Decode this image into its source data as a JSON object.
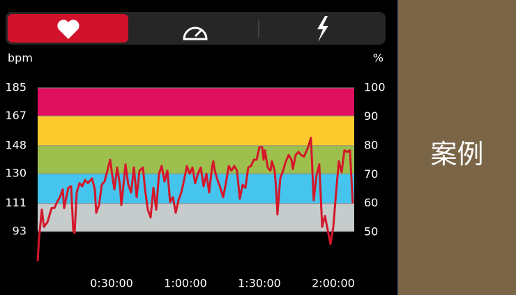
{
  "side_label": "案例",
  "chart_data": {
    "type": "line",
    "ylabel": "bpm",
    "y2label": "%",
    "color": "#d4172a",
    "x": [
      0,
      34,
      102,
      153,
      238,
      340,
      408,
      475,
      543,
      611,
      645,
      713,
      747,
      815,
      866,
      900,
      951,
      1019,
      1087,
      1155,
      1222,
      1324,
      1392,
      1426,
      1494,
      1562,
      1630,
      1698,
      1766,
      1817,
      1868,
      1936,
      2004,
      2038,
      2072,
      2139,
      2207,
      2275,
      2343,
      2411,
      2479,
      2564,
      2615,
      2683,
      2751,
      2819,
      2887,
      2955,
      3022,
      3090,
      3158,
      3226,
      3294,
      3362,
      3430,
      3498,
      3566,
      3634,
      3702,
      3770,
      3837,
      3905,
      3973,
      4041,
      4109,
      4177,
      4245,
      4279,
      4313,
      4381,
      4449,
      4517,
      4585,
      4653,
      4720,
      4788,
      4856,
      4924,
      4992,
      5060,
      5128,
      5196,
      5264,
      5332,
      5400,
      5468,
      5502,
      5535,
      5603,
      5671,
      5705,
      5773,
      5807,
      5841,
      5909,
      5977,
      6045,
      6113,
      6181,
      6215,
      6283,
      6350,
      6418,
      6486,
      6554,
      6588,
      6622,
      6656,
      6724,
      6792,
      6860,
      6928,
      6996,
      7064,
      7132,
      7200,
      7268,
      7335,
      7403,
      7471,
      7539,
      7607,
      7675
    ],
    "values": [
      74,
      89,
      107,
      96,
      99,
      108,
      108,
      112,
      115,
      120,
      108,
      117,
      121,
      122,
      94,
      92,
      118,
      124,
      122,
      126,
      124,
      127,
      120,
      105,
      110,
      123,
      125,
      132,
      139,
      129,
      120,
      134,
      123,
      110,
      118,
      136,
      123,
      118,
      134,
      115,
      132,
      134,
      120,
      107,
      102,
      121,
      107,
      130,
      135,
      125,
      132,
      112,
      115,
      105,
      113,
      118,
      126,
      135,
      130,
      134,
      124,
      130,
      134,
      122,
      130,
      118,
      134,
      138,
      132,
      126,
      121,
      115,
      124,
      135,
      132,
      135,
      132,
      114,
      123,
      121,
      134,
      135,
      139,
      139,
      147,
      147,
      139,
      145,
      134,
      132,
      138,
      132,
      121,
      104,
      127,
      132,
      138,
      142,
      139,
      133,
      142,
      144,
      142,
      141,
      145,
      147,
      150,
      153,
      113,
      129,
      136,
      96,
      103,
      94,
      85,
      96,
      118,
      138,
      131,
      145,
      144,
      145,
      111
    ],
    "xlim": [
      0,
      7710
    ],
    "xticks": [
      {
        "value": 1800,
        "label": "0:30:00"
      },
      {
        "value": 3600,
        "label": "1:00:00"
      },
      {
        "value": 5400,
        "label": "1:30:00"
      },
      {
        "value": 7200,
        "label": "2:00:00"
      }
    ],
    "ylim": [
      70,
      195
    ],
    "yticks": [
      93,
      111,
      130,
      148,
      167,
      185
    ],
    "y2lim": [
      37.84,
      105.41
    ],
    "y2ticks": [
      50,
      60,
      70,
      80,
      90,
      100
    ],
    "zone_colors": [
      "#c5cccb",
      "#45c5ee",
      "#9dbf4e",
      "#fecb2f",
      "#e0105e"
    ]
  }
}
